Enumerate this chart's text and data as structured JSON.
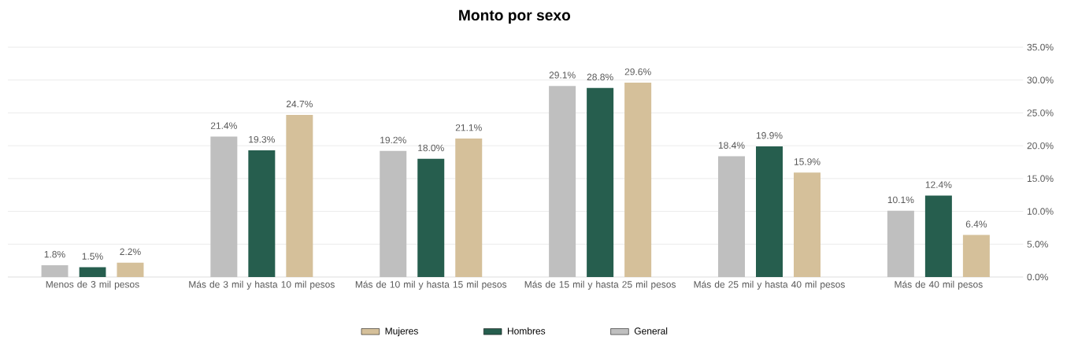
{
  "chart_data": {
    "type": "bar",
    "title": "Monto por sexo",
    "categories": [
      "Menos de 3 mil pesos",
      "Más de 3 mil y hasta 10 mil pesos",
      "Más de 10 mil y hasta 15 mil pesos",
      "Más de 15 mil y hasta 25 mil pesos",
      "Más de 25 mil y hasta 40 mil pesos",
      "Más de 40 mil pesos"
    ],
    "series": [
      {
        "name": "General",
        "color": "#bfbfbf",
        "values": [
          1.8,
          21.4,
          19.2,
          29.1,
          18.4,
          10.1
        ],
        "value_labels": [
          "1.8%",
          "21.4%",
          "19.2%",
          "29.1%",
          "18.4%",
          "10.1%"
        ]
      },
      {
        "name": "Hombres",
        "color": "#265e4e",
        "values": [
          1.5,
          19.3,
          18.0,
          28.8,
          19.9,
          12.4
        ],
        "value_labels": [
          "1.5%",
          "19.3%",
          "18.0%",
          "28.8%",
          "19.9%",
          "12.4%"
        ]
      },
      {
        "name": "Mujeres",
        "color": "#d5c09a",
        "values": [
          2.2,
          24.7,
          21.1,
          29.6,
          15.9,
          6.4
        ],
        "value_labels": [
          "2.2%",
          "24.7%",
          "21.1%",
          "29.6%",
          "15.9%",
          "6.4%"
        ]
      }
    ],
    "ylim": [
      0,
      35
    ],
    "yticks": [
      {
        "value": 0,
        "label": "0.0%"
      },
      {
        "value": 5,
        "label": "5.0%"
      },
      {
        "value": 10,
        "label": "10.0%"
      },
      {
        "value": 15,
        "label": "15.0%"
      },
      {
        "value": 20,
        "label": "20.0%"
      },
      {
        "value": 25,
        "label": "25.0%"
      },
      {
        "value": 30,
        "label": "30.0%"
      },
      {
        "value": 35,
        "label": "35.0%"
      }
    ],
    "grid": "y",
    "legend": "bottom"
  }
}
